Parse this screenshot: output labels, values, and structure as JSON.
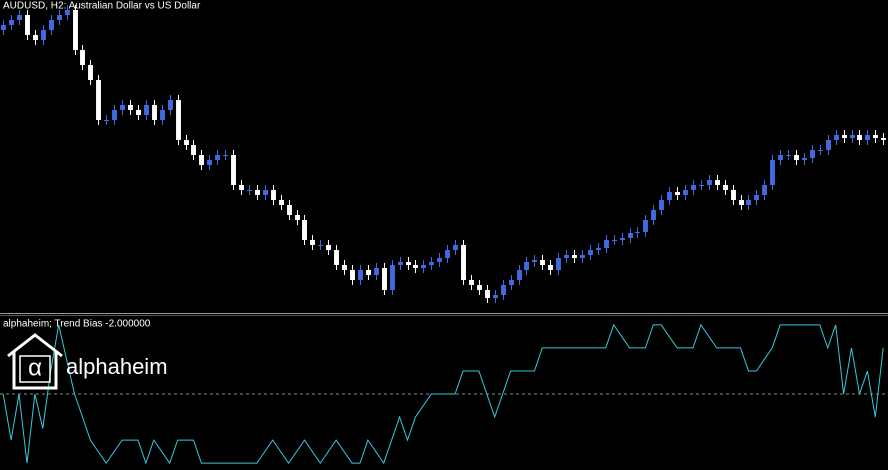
{
  "chart_data": [
    {
      "type": "candlestick",
      "title": "AUDUSD, H2:  Australian Dollar vs US Dollar",
      "up_color": "#4169e1",
      "down_color": "#ffffff",
      "xlim": [
        -0.4,
        111.6
      ],
      "ylim": [
        0,
        312
      ],
      "open": [
        282,
        287,
        292,
        297,
        277,
        272,
        282,
        292,
        297,
        302,
        262,
        247,
        232,
        192,
        192,
        202,
        207,
        202,
        197,
        207,
        192,
        202,
        212,
        172,
        167,
        157,
        147,
        152,
        157,
        157,
        127,
        122,
        122,
        117,
        122,
        112,
        107,
        97,
        92,
        72,
        67,
        67,
        62,
        47,
        42,
        32,
        42,
        37,
        44,
        22,
        47,
        50,
        47,
        44,
        47,
        50,
        54,
        62,
        67,
        32,
        27,
        22,
        14,
        17,
        27,
        32,
        42,
        50,
        52,
        47,
        42,
        54,
        57,
        54,
        57,
        62,
        64,
        72,
        72,
        74,
        79,
        80,
        92,
        102,
        112,
        120,
        117,
        122,
        127,
        127,
        132,
        127,
        122,
        112,
        107,
        112,
        117,
        127,
        152,
        157,
        157,
        152,
        154,
        162,
        162,
        172,
        177,
        174,
        177,
        172,
        177,
        174
      ],
      "high": [
        292,
        297,
        302,
        302,
        282,
        287,
        297,
        302,
        307,
        307,
        267,
        252,
        237,
        197,
        207,
        212,
        212,
        207,
        212,
        212,
        207,
        217,
        217,
        177,
        172,
        162,
        157,
        162,
        162,
        162,
        132,
        127,
        127,
        127,
        127,
        117,
        112,
        102,
        97,
        77,
        72,
        72,
        67,
        52,
        47,
        47,
        47,
        49,
        49,
        52,
        55,
        55,
        52,
        52,
        55,
        59,
        67,
        72,
        72,
        37,
        32,
        27,
        22,
        32,
        37,
        47,
        55,
        57,
        57,
        52,
        59,
        62,
        62,
        62,
        67,
        69,
        77,
        77,
        79,
        84,
        85,
        97,
        107,
        117,
        125,
        125,
        127,
        132,
        132,
        137,
        137,
        132,
        127,
        117,
        117,
        122,
        132,
        157,
        162,
        162,
        162,
        159,
        167,
        167,
        177,
        182,
        182,
        182,
        182,
        182,
        182,
        179
      ],
      "low": [
        277,
        282,
        287,
        272,
        267,
        267,
        277,
        287,
        292,
        257,
        242,
        227,
        187,
        187,
        187,
        197,
        197,
        192,
        192,
        187,
        187,
        197,
        167,
        162,
        152,
        142,
        142,
        147,
        152,
        122,
        117,
        117,
        112,
        112,
        107,
        102,
        92,
        87,
        67,
        62,
        62,
        57,
        42,
        37,
        27,
        27,
        32,
        32,
        17,
        17,
        42,
        42,
        39,
        39,
        42,
        45,
        49,
        57,
        27,
        22,
        17,
        9,
        9,
        12,
        22,
        27,
        37,
        45,
        42,
        37,
        37,
        49,
        49,
        49,
        52,
        57,
        59,
        67,
        67,
        69,
        74,
        75,
        87,
        97,
        107,
        112,
        112,
        117,
        122,
        122,
        122,
        117,
        107,
        102,
        102,
        107,
        112,
        122,
        147,
        152,
        147,
        147,
        149,
        157,
        157,
        167,
        169,
        169,
        167,
        167,
        169,
        167
      ],
      "close": [
        287,
        292,
        297,
        277,
        272,
        282,
        292,
        297,
        302,
        262,
        247,
        232,
        192,
        192,
        202,
        207,
        202,
        197,
        207,
        192,
        202,
        212,
        172,
        167,
        157,
        147,
        152,
        157,
        157,
        127,
        122,
        122,
        117,
        122,
        112,
        107,
        97,
        92,
        72,
        67,
        67,
        62,
        47,
        42,
        32,
        42,
        37,
        44,
        22,
        47,
        50,
        47,
        44,
        47,
        50,
        54,
        62,
        67,
        32,
        27,
        22,
        14,
        17,
        27,
        32,
        42,
        50,
        52,
        47,
        42,
        54,
        57,
        54,
        57,
        62,
        64,
        72,
        72,
        74,
        79,
        80,
        92,
        102,
        112,
        120,
        117,
        122,
        127,
        127,
        132,
        127,
        122,
        112,
        107,
        112,
        117,
        127,
        152,
        157,
        157,
        152,
        154,
        162,
        162,
        172,
        177,
        174,
        177,
        172,
        177,
        174,
        172
      ]
    },
    {
      "type": "line",
      "title": "alphaheim; Trend Bias -2.000000",
      "color": "#33ccdd",
      "level": 0,
      "xlim": [
        -0.4,
        111.6
      ],
      "ylim": [
        -3.3,
        3.3
      ],
      "x": [
        0,
        1,
        2,
        3,
        4,
        5,
        6,
        7,
        9,
        10,
        11,
        13,
        15,
        17,
        18,
        19,
        21,
        22,
        24,
        25,
        32,
        34,
        36,
        38,
        40,
        42,
        44,
        45,
        46,
        48,
        50,
        51,
        52,
        54,
        57,
        58,
        60,
        61,
        62,
        64,
        67,
        68,
        76,
        77,
        79,
        81,
        82,
        83,
        85,
        87,
        88,
        90,
        93,
        94,
        95,
        97,
        98,
        103,
        104,
        105,
        106,
        107,
        108,
        109,
        110,
        111
      ],
      "values": [
        0,
        -2,
        0,
        -3,
        0,
        -1.5,
        1,
        3,
        0,
        -1,
        -2,
        -3,
        -2,
        -2,
        -3,
        -2,
        -3,
        -2,
        -2,
        -3,
        -3,
        -2,
        -3,
        -2,
        -3,
        -2,
        -3,
        -3,
        -2,
        -3,
        -1,
        -2,
        -1,
        0,
        0,
        1,
        1,
        0,
        -1,
        1,
        1,
        2,
        2,
        3,
        2,
        2,
        3,
        3,
        2,
        2,
        3,
        2,
        2,
        1,
        1,
        2,
        3,
        3,
        2,
        3,
        0,
        2,
        0,
        1,
        -1,
        2
      ]
    }
  ],
  "logo": {
    "symbol": "α",
    "text": "alphaheim"
  }
}
